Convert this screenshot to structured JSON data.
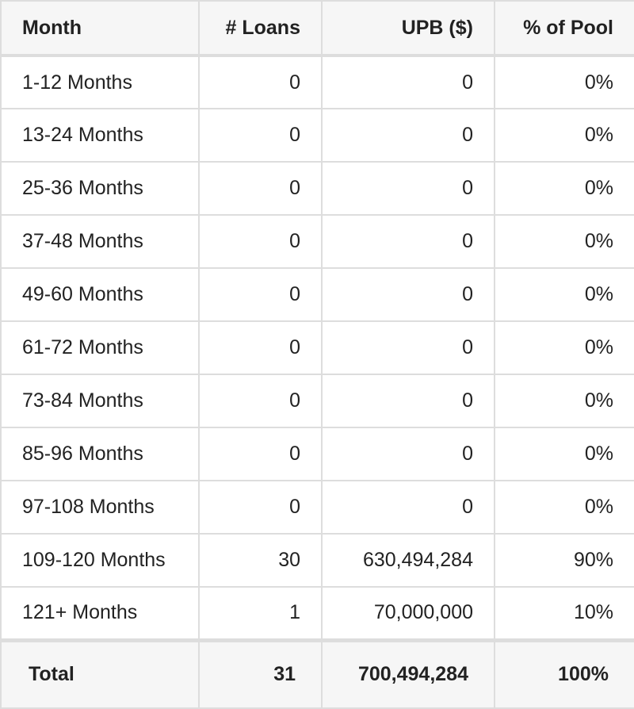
{
  "headers": [
    "Month",
    "# Loans",
    "UPB ($)",
    "% of Pool"
  ],
  "rows": [
    [
      "1-12 Months",
      "0",
      "0",
      "0%"
    ],
    [
      "13-24 Months",
      "0",
      "0",
      "0%"
    ],
    [
      "25-36 Months",
      "0",
      "0",
      "0%"
    ],
    [
      "37-48 Months",
      "0",
      "0",
      "0%"
    ],
    [
      "49-60 Months",
      "0",
      "0",
      "0%"
    ],
    [
      "61-72 Months",
      "0",
      "0",
      "0%"
    ],
    [
      "73-84 Months",
      "0",
      "0",
      "0%"
    ],
    [
      "85-96 Months",
      "0",
      "0",
      "0%"
    ],
    [
      "97-108 Months",
      "0",
      "0",
      "0%"
    ],
    [
      "109-120 Months",
      "30",
      "630,494,284",
      "90%"
    ],
    [
      "121+ Months",
      "1",
      "70,000,000",
      "10%"
    ]
  ],
  "total": [
    "Total",
    "31",
    "700,494,284",
    "100%"
  ],
  "colors": {
    "border": "#dddddd",
    "header_bg": "#f6f6f6",
    "text": "#222222"
  }
}
